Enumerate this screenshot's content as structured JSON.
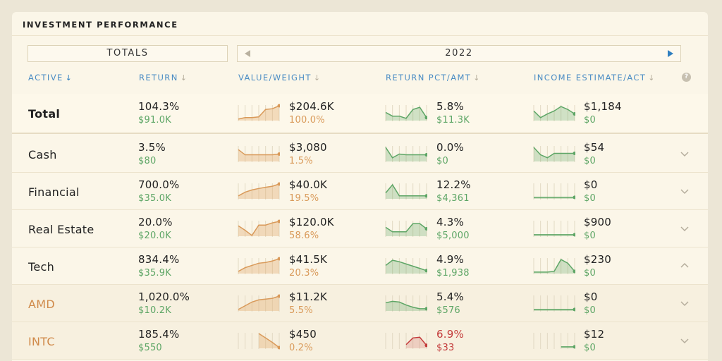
{
  "title": "INVESTMENT PERFORMANCE",
  "totals_label": "TOTALS",
  "year": "2022",
  "columns": {
    "active": "ACTIVE",
    "return": "RETURN",
    "value_weight": "VALUE/WEIGHT",
    "return_pct_amt": "RETURN PCT/AMT",
    "income_est_act": "INCOME ESTIMATE/ACT"
  },
  "icons": {
    "sort_active": "arrow-down-icon",
    "sort_inactive": "arrow-down-icon",
    "help": "question-mark-icon",
    "prev": "triangle-left-icon",
    "next": "triangle-right-icon",
    "expand": "chevron-down-icon",
    "collapse": "chevron-up-icon"
  },
  "colors": {
    "accent_blue": "#2f7fc0",
    "green": "#5ea666",
    "orange": "#d99a5a",
    "red": "#c33a3a"
  },
  "rows": [
    {
      "name": "Total",
      "ret_pct": "104.3%",
      "ret_amt": "$91.0K",
      "value": "$204.6K",
      "weight": "100.0%",
      "rpct": "5.8%",
      "ramt": "$11.3K",
      "inc_est": "$1,184",
      "inc_act": "$0",
      "rpct_negative": false,
      "expand": "none",
      "kind": "total"
    },
    {
      "name": "Cash",
      "ret_pct": "3.5%",
      "ret_amt": "$80",
      "value": "$3,080",
      "weight": "1.5%",
      "rpct": "0.0%",
      "ramt": "$0",
      "inc_est": "$54",
      "inc_act": "$0",
      "rpct_negative": false,
      "expand": "down",
      "kind": "group"
    },
    {
      "name": "Financial",
      "ret_pct": "700.0%",
      "ret_amt": "$35.0K",
      "value": "$40.0K",
      "weight": "19.5%",
      "rpct": "12.2%",
      "ramt": "$4,361",
      "inc_est": "$0",
      "inc_act": "$0",
      "rpct_negative": false,
      "expand": "down",
      "kind": "group"
    },
    {
      "name": "Real Estate",
      "ret_pct": "20.0%",
      "ret_amt": "$20.0K",
      "value": "$120.0K",
      "weight": "58.6%",
      "rpct": "4.3%",
      "ramt": "$5,000",
      "inc_est": "$900",
      "inc_act": "$0",
      "rpct_negative": false,
      "expand": "down",
      "kind": "group"
    },
    {
      "name": "Tech",
      "ret_pct": "834.4%",
      "ret_amt": "$35.9K",
      "value": "$41.5K",
      "weight": "20.3%",
      "rpct": "4.9%",
      "ramt": "$1,938",
      "inc_est": "$230",
      "inc_act": "$0",
      "rpct_negative": false,
      "expand": "up",
      "kind": "group"
    },
    {
      "name": "AMD",
      "ret_pct": "1,020.0%",
      "ret_amt": "$10.2K",
      "value": "$11.2K",
      "weight": "5.5%",
      "rpct": "5.4%",
      "ramt": "$576",
      "inc_est": "$0",
      "inc_act": "$0",
      "rpct_negative": false,
      "expand": "down",
      "kind": "child"
    },
    {
      "name": "INTC",
      "ret_pct": "185.4%",
      "ret_amt": "$550",
      "value": "$450",
      "weight": "0.2%",
      "rpct": "6.9%",
      "ramt": "$33",
      "inc_est": "$12",
      "inc_act": "$0",
      "rpct_negative": true,
      "expand": "down",
      "kind": "child"
    }
  ],
  "sparklines": {
    "value": [
      [
        0.1,
        0.2,
        0.2,
        0.25,
        0.75,
        0.8,
        1.0
      ],
      [
        0.8,
        0.45,
        0.45,
        0.45,
        0.45,
        0.45,
        0.5
      ],
      [
        0.2,
        0.45,
        0.6,
        0.7,
        0.78,
        0.85,
        1.0
      ],
      [
        0.7,
        0.4,
        0.05,
        0.75,
        0.75,
        0.9,
        1.0
      ],
      [
        0.15,
        0.4,
        0.55,
        0.7,
        0.75,
        0.85,
        1.0
      ],
      [
        0.1,
        0.35,
        0.6,
        0.75,
        0.8,
        0.85,
        1.0
      ],
      [
        null,
        null,
        null,
        1.0,
        0.7,
        0.4,
        0.05
      ]
    ],
    "return": [
      [
        0.55,
        0.3,
        0.3,
        0.15,
        0.75,
        0.9,
        0.2
      ],
      [
        0.95,
        0.25,
        0.5,
        0.45,
        0.45,
        0.45,
        0.45
      ],
      [
        0.4,
        0.95,
        0.2,
        0.2,
        0.2,
        0.2,
        0.2
      ],
      [
        0.6,
        0.3,
        0.3,
        0.3,
        0.85,
        0.85,
        0.5
      ],
      [
        0.55,
        0.9,
        0.8,
        0.65,
        0.5,
        0.35,
        0.2
      ],
      [
        0.55,
        0.65,
        0.6,
        0.4,
        0.25,
        0.15,
        0.15
      ],
      [
        null,
        null,
        null,
        0.25,
        0.7,
        0.75,
        0.2
      ]
    ],
    "income": [
      [
        0.65,
        0.2,
        0.45,
        0.65,
        0.95,
        0.75,
        0.45
      ],
      [
        0.95,
        0.45,
        0.25,
        0.55,
        0.55,
        0.55,
        0.55
      ],
      [
        0.1,
        0.1,
        0.1,
        0.1,
        0.1,
        0.1,
        0.1
      ],
      [
        0.1,
        0.1,
        0.1,
        0.1,
        0.1,
        0.1,
        0.1
      ],
      [
        0.1,
        0.1,
        0.1,
        0.15,
        0.95,
        0.7,
        0.15
      ],
      [
        0.1,
        0.1,
        0.1,
        0.1,
        0.1,
        0.1,
        0.1
      ],
      [
        null,
        null,
        null,
        null,
        0.1,
        0.1,
        0.1
      ]
    ]
  }
}
